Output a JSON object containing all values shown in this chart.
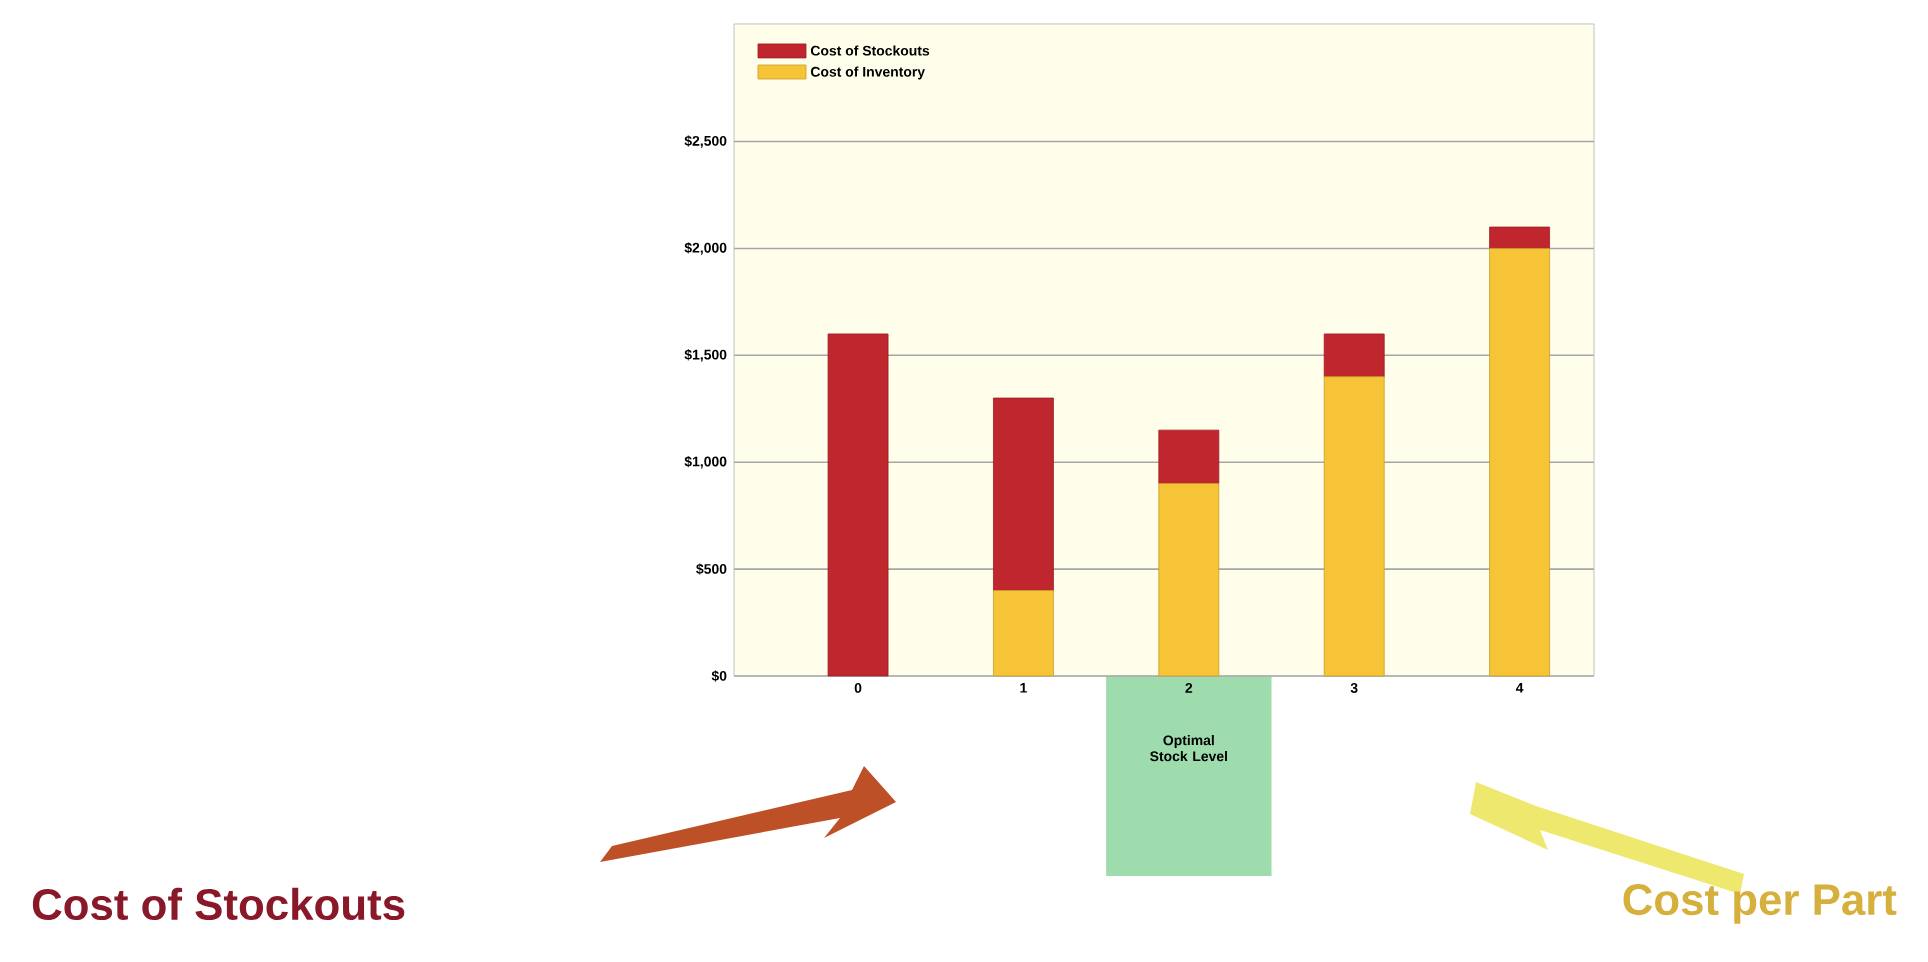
{
  "chart_data": {
    "type": "bar",
    "stacked": true,
    "categories": [
      "0",
      "1",
      "2",
      "3",
      "4"
    ],
    "series": [
      {
        "name": "Cost of Inventory",
        "color": "#f8c437",
        "values": [
          0,
          400,
          900,
          1400,
          2000
        ]
      },
      {
        "name": "Cost of Stockouts",
        "color": "#c0262e",
        "values": [
          1600,
          900,
          250,
          200,
          100
        ]
      }
    ],
    "ylim": [
      0,
      3050
    ],
    "yticks": [
      {
        "value": 0,
        "label": "$0"
      },
      {
        "value": 500,
        "label": "$500"
      },
      {
        "value": 1000,
        "label": "$1,000"
      },
      {
        "value": 1500,
        "label": "$1,500"
      },
      {
        "value": 2000,
        "label": "$2,000"
      },
      {
        "value": 2500,
        "label": "$2,500"
      }
    ],
    "grid": "y",
    "legend": "top left",
    "bands": [
      {
        "axis": "x",
        "from": "2",
        "to": "2",
        "label": "Optimal Stock Level",
        "color": "#9edcae"
      }
    ],
    "annotations": [
      "Cost of Stockouts",
      "Cost per Part"
    ]
  }
}
